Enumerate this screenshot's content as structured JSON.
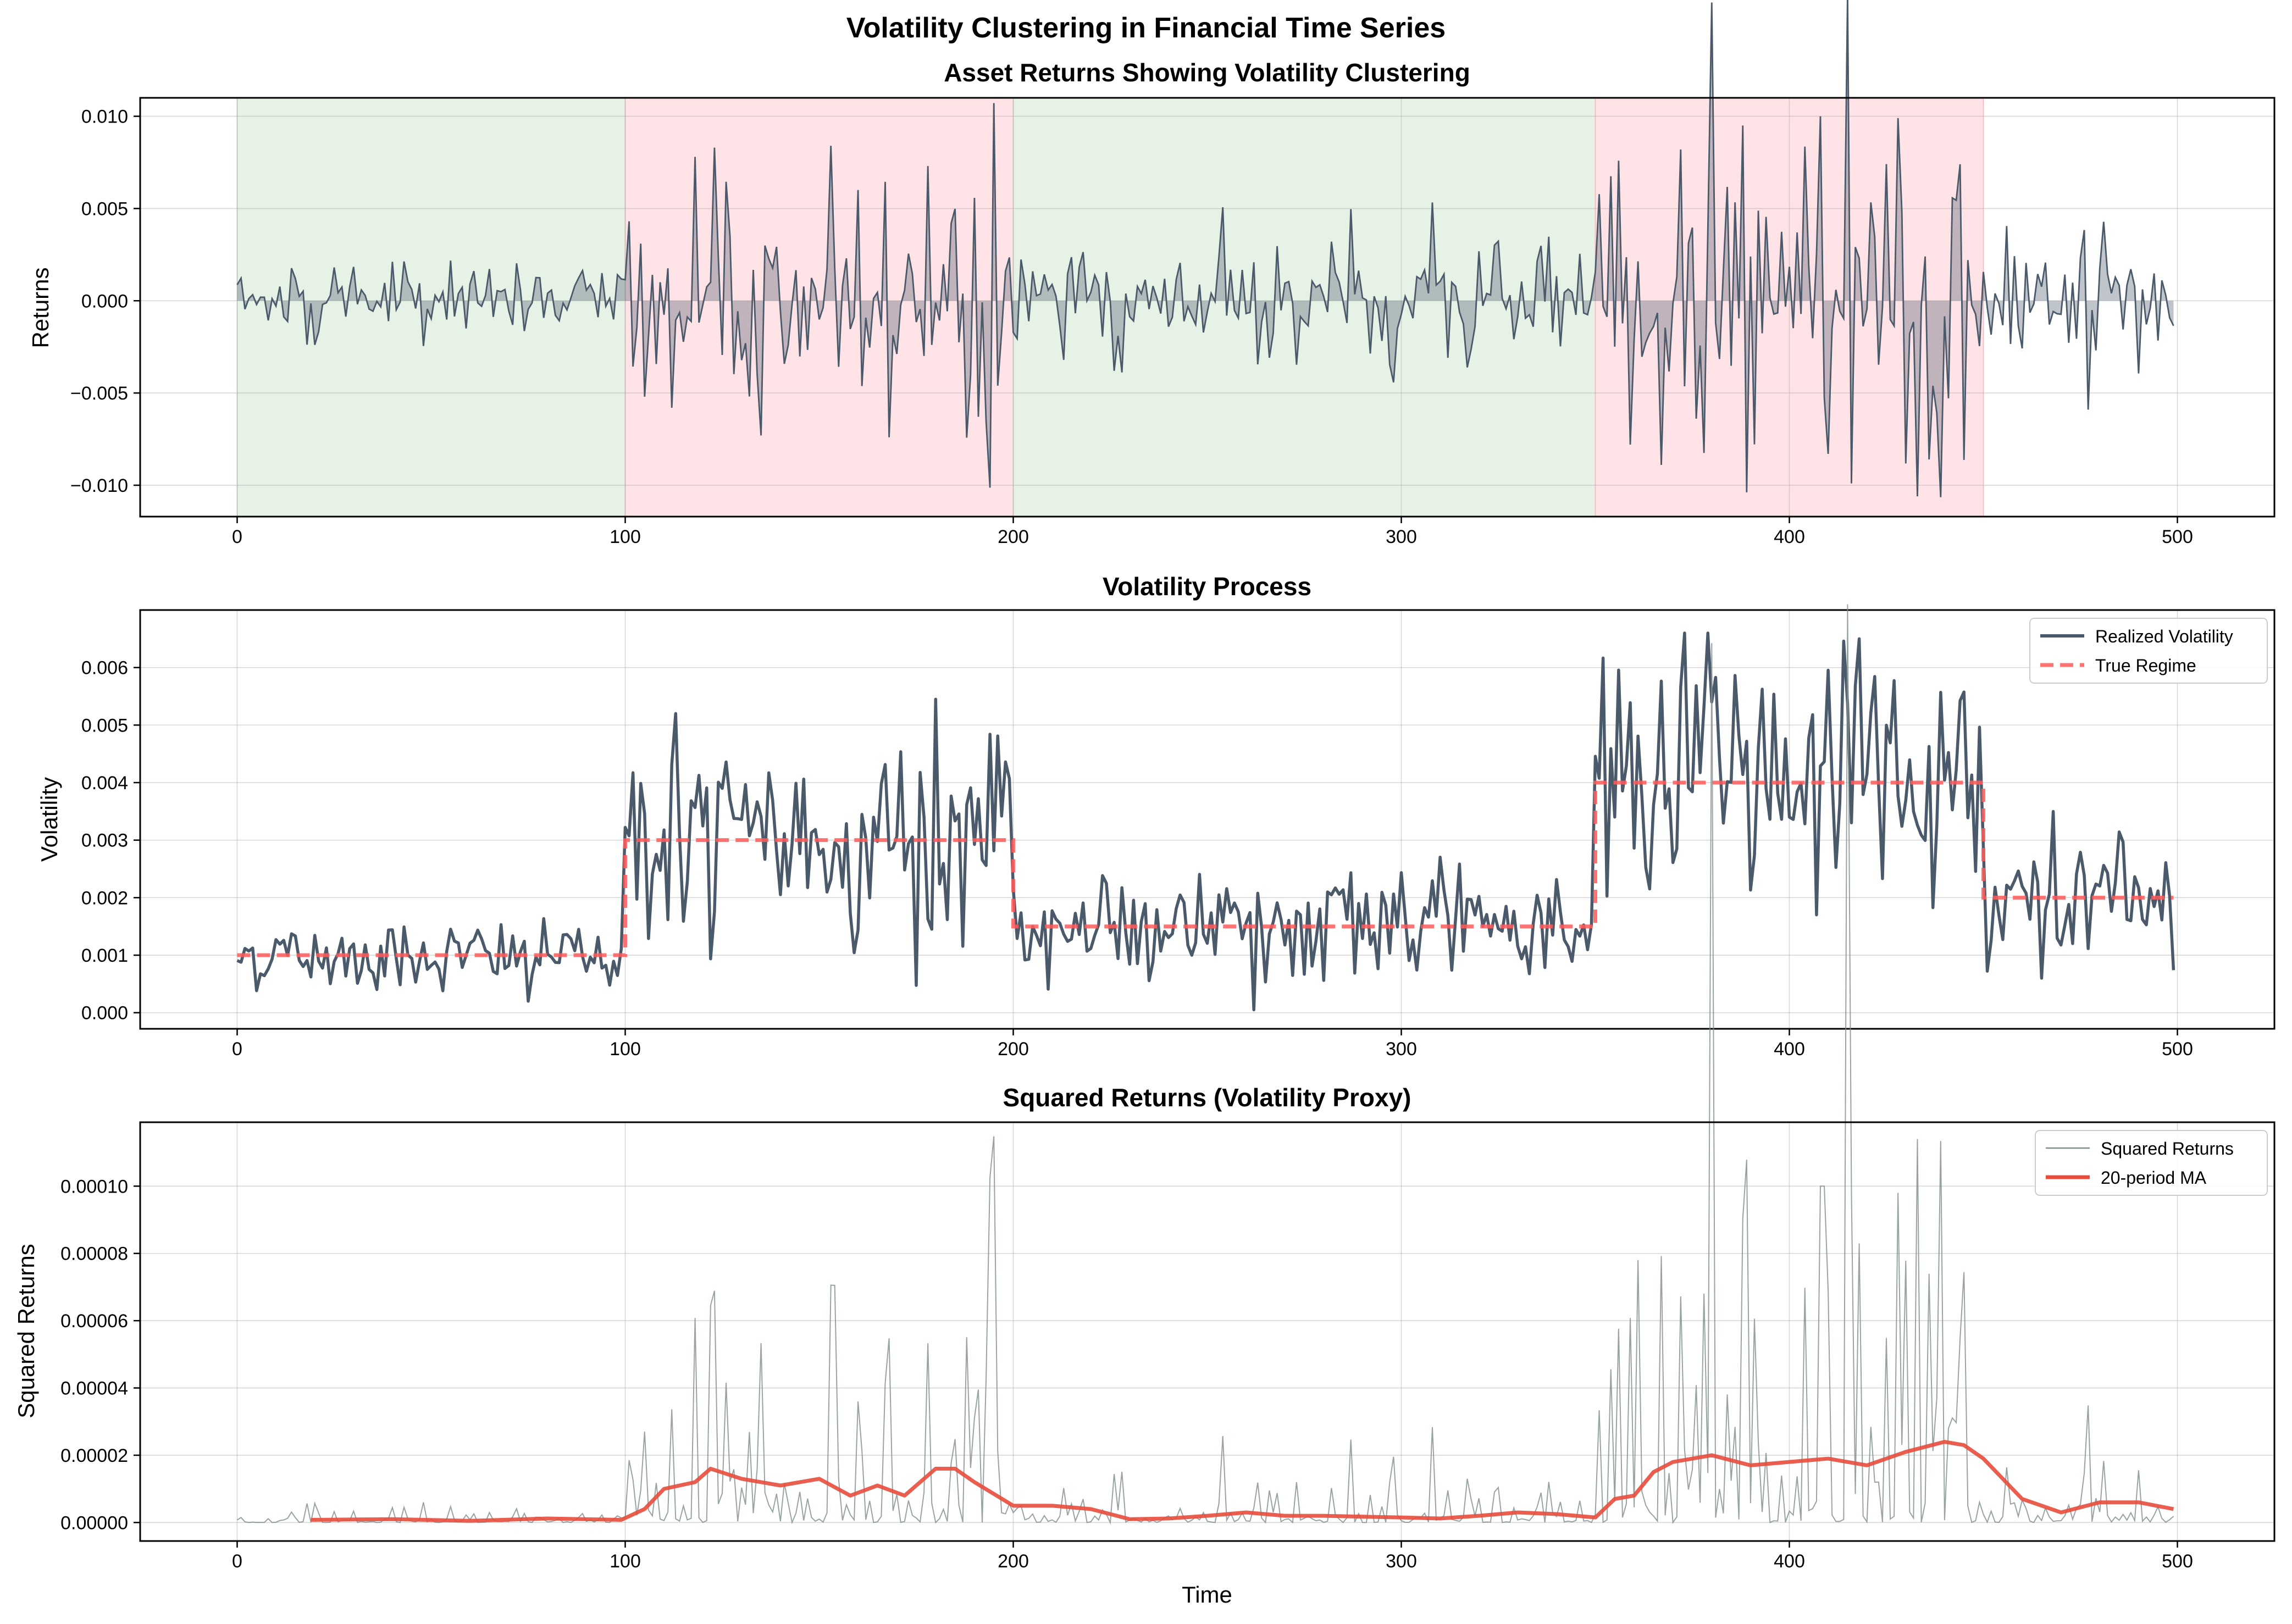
{
  "figure": {
    "title": "Volatility Clustering in Financial Time Series"
  },
  "colors": {
    "realized": "#4a5a6a",
    "regime": "#ff5a5a",
    "ma": "#e74c3c",
    "calm_span": "#e6f2e6",
    "volatile_span": "#ffe3e6",
    "squared": "#7f8c8d"
  },
  "chart_data": [
    {
      "type": "area",
      "title": "Asset Returns Showing Volatility Clustering",
      "xlabel": "",
      "ylabel": "Returns",
      "xlim": [
        -25,
        525
      ],
      "ylim": [
        -0.0117,
        0.011
      ],
      "xticks": [
        "0",
        "100",
        "200",
        "300",
        "400",
        "500"
      ],
      "yticks": [
        "0.010",
        "0.005",
        "0.000",
        "−0.005",
        "−0.010"
      ],
      "ytick_values": [
        0.01,
        0.005,
        0.0,
        -0.005,
        -0.01
      ],
      "grid": true,
      "shaded_regions": [
        {
          "x": [
            0,
            100
          ],
          "kind": "calm"
        },
        {
          "x": [
            100,
            200
          ],
          "kind": "volatile"
        },
        {
          "x": [
            200,
            350
          ],
          "kind": "calm"
        },
        {
          "x": [
            350,
            450
          ],
          "kind": "volatile"
        }
      ],
      "regime_sigma": [
        {
          "x": [
            0,
            100
          ],
          "sigma": 0.001
        },
        {
          "x": [
            100,
            200
          ],
          "sigma": 0.003
        },
        {
          "x": [
            200,
            350
          ],
          "sigma": 0.0015
        },
        {
          "x": [
            350,
            450
          ],
          "sigma": 0.004
        },
        {
          "x": [
            450,
            500
          ],
          "sigma": 0.002
        }
      ],
      "n_points": 500,
      "marked_points": [
        {
          "x": 105,
          "y": -0.0052
        },
        {
          "x": 112,
          "y": -0.0058
        },
        {
          "x": 118,
          "y": 0.0078
        },
        {
          "x": 123,
          "y": 0.0083
        },
        {
          "x": 135,
          "y": -0.0073
        },
        {
          "x": 153,
          "y": 0.0084
        },
        {
          "x": 160,
          "y": 0.006
        },
        {
          "x": 168,
          "y": -0.0074
        },
        {
          "x": 178,
          "y": 0.0073
        },
        {
          "x": 367,
          "y": -0.0089
        },
        {
          "x": 372,
          "y": 0.0082
        },
        {
          "x": 388,
          "y": 0.0095
        },
        {
          "x": 408,
          "y": 0.01
        },
        {
          "x": 410,
          "y": -0.0083
        },
        {
          "x": 428,
          "y": 0.0099
        },
        {
          "x": 433,
          "y": -0.0106
        },
        {
          "x": 436,
          "y": -0.0086
        },
        {
          "x": 444,
          "y": 0.0074
        },
        {
          "x": 477,
          "y": -0.0059
        }
      ]
    },
    {
      "type": "line",
      "title": "Volatility Process",
      "xlabel": "",
      "ylabel": "Volatility",
      "xlim": [
        -25,
        525
      ],
      "ylim": [
        -0.00028,
        0.007
      ],
      "xticks": [
        "0",
        "100",
        "200",
        "300",
        "400",
        "500"
      ],
      "yticks": [
        "0.006",
        "0.005",
        "0.004",
        "0.003",
        "0.002",
        "0.001",
        "0.000"
      ],
      "ytick_values": [
        0.006,
        0.005,
        0.004,
        0.003,
        0.002,
        0.001,
        0.0
      ],
      "grid": true,
      "legend_position": "top-right",
      "series": [
        {
          "name": "Realized Volatility",
          "style": "solid",
          "n_points": 500
        },
        {
          "name": "True Regime",
          "style": "dashed",
          "steps": [
            {
              "x": [
                0,
                100
              ],
              "y": 0.001
            },
            {
              "x": [
                100,
                200
              ],
              "y": 0.003
            },
            {
              "x": [
                200,
                350
              ],
              "y": 0.0015
            },
            {
              "x": [
                350,
                450
              ],
              "y": 0.004
            },
            {
              "x": [
                450,
                500
              ],
              "y": 0.002
            }
          ]
        }
      ],
      "marked_points": [
        {
          "x": 75,
          "y": 0.0002
        },
        {
          "x": 113,
          "y": 0.0052
        },
        {
          "x": 180,
          "y": 0.00545
        },
        {
          "x": 262,
          "y": 5e-05
        },
        {
          "x": 373,
          "y": 0.0066
        },
        {
          "x": 379,
          "y": 0.0066
        },
        {
          "x": 418,
          "y": 0.0065
        },
        {
          "x": 465,
          "y": 0.0006
        }
      ]
    },
    {
      "type": "line",
      "title": "Squared Returns (Volatility Proxy)",
      "xlabel": "Time",
      "ylabel": "Squared Returns",
      "xlim": [
        -25,
        525
      ],
      "ylim": [
        -5.5e-06,
        0.000119
      ],
      "xticks": [
        "0",
        "100",
        "200",
        "300",
        "400",
        "500"
      ],
      "yticks": [
        "0.00010",
        "0.00008",
        "0.00006",
        "0.00004",
        "0.00002",
        "0.00000"
      ],
      "ytick_values": [
        0.0001,
        8e-05,
        6e-05,
        4e-05,
        2e-05,
        0.0
      ],
      "grid": true,
      "legend_position": "top-right",
      "series": [
        {
          "name": "Squared Returns",
          "style": "thin",
          "n_points": 500
        },
        {
          "name": "20-period MA",
          "style": "thick",
          "window": 20,
          "x": [
            19,
            40,
            60,
            80,
            99,
            105,
            110,
            118,
            122,
            130,
            140,
            150,
            158,
            165,
            172,
            180,
            185,
            190,
            200,
            210,
            220,
            230,
            240,
            250,
            260,
            270,
            280,
            300,
            310,
            320,
            330,
            340,
            350,
            355,
            360,
            365,
            370,
            380,
            390,
            400,
            410,
            420,
            430,
            440,
            445,
            450,
            460,
            470,
            480,
            490,
            499
          ],
          "y": [
            8e-07,
            1e-06,
            5e-07,
            1.2e-06,
            8e-07,
            4e-06,
            1e-05,
            1.2e-05,
            1.6e-05,
            1.3e-05,
            1.1e-05,
            1.3e-05,
            8e-06,
            1.1e-05,
            8e-06,
            1.6e-05,
            1.6e-05,
            1.2e-05,
            5e-06,
            5e-06,
            4e-06,
            1e-06,
            1.2e-06,
            2e-06,
            3e-06,
            2e-06,
            2e-06,
            1.5e-06,
            1.2e-06,
            2e-06,
            3e-06,
            2.5e-06,
            1.5e-06,
            7e-06,
            8e-06,
            1.5e-05,
            1.8e-05,
            2e-05,
            1.7e-05,
            1.8e-05,
            1.9e-05,
            1.7e-05,
            2.1e-05,
            2.4e-05,
            2.3e-05,
            1.9e-05,
            7e-06,
            3e-06,
            6e-06,
            6e-06,
            4e-06
          ]
        }
      ],
      "marked_points": [
        {
          "x": 122,
          "y": 6.45e-05
        },
        {
          "x": 154,
          "y": 7.05e-05
        },
        {
          "x": 361,
          "y": 7.8e-05
        },
        {
          "x": 409,
          "y": 0.0001
        },
        {
          "x": 433,
          "y": 0.000114
        },
        {
          "x": 418,
          "y": 8.3e-05
        }
      ]
    }
  ]
}
